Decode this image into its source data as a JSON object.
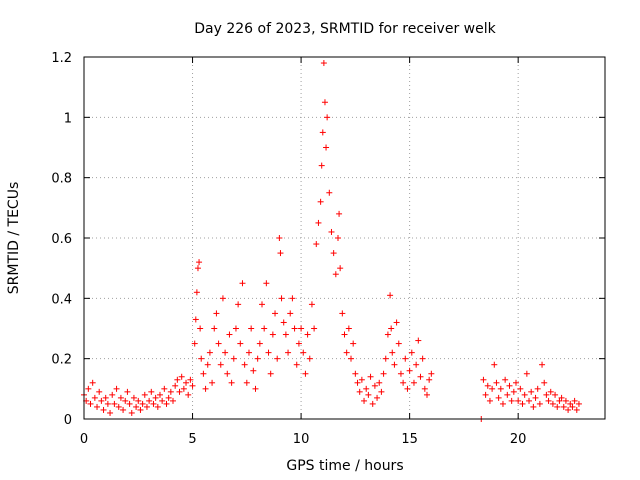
{
  "chart_data": {
    "type": "scatter",
    "title": "Day 226 of 2023, SRMTID for receiver welk",
    "xlabel": "GPS time / hours",
    "ylabel": "SRMTID / TECUs",
    "xlim": [
      0,
      24
    ],
    "ylim": [
      0,
      1.2
    ],
    "grid": true,
    "x_ticks": [
      {
        "value": 0,
        "label": "0"
      },
      {
        "value": 5,
        "label": "5"
      },
      {
        "value": 10,
        "label": "10"
      },
      {
        "value": 15,
        "label": "15"
      },
      {
        "value": 20,
        "label": "20"
      }
    ],
    "y_ticks": [
      {
        "value": 0,
        "label": "0"
      },
      {
        "value": 0.2,
        "label": "0.2"
      },
      {
        "value": 0.4,
        "label": "0.4"
      },
      {
        "value": 0.6,
        "label": "0.6"
      },
      {
        "value": 0.8,
        "label": "0.8"
      },
      {
        "value": 1.0,
        "label": "1"
      },
      {
        "value": 1.2,
        "label": "1.2"
      }
    ],
    "series": [
      {
        "name": "SRMTID",
        "color": "#ff0000",
        "marker": "plus",
        "points": [
          [
            0.0,
            0.08
          ],
          [
            0.1,
            0.06
          ],
          [
            0.2,
            0.1
          ],
          [
            0.3,
            0.05
          ],
          [
            0.4,
            0.12
          ],
          [
            0.5,
            0.07
          ],
          [
            0.6,
            0.04
          ],
          [
            0.7,
            0.09
          ],
          [
            0.8,
            0.06
          ],
          [
            0.9,
            0.03
          ],
          [
            1.0,
            0.07
          ],
          [
            1.1,
            0.05
          ],
          [
            1.2,
            0.02
          ],
          [
            1.3,
            0.08
          ],
          [
            1.4,
            0.05
          ],
          [
            1.5,
            0.1
          ],
          [
            1.6,
            0.04
          ],
          [
            1.7,
            0.07
          ],
          [
            1.8,
            0.03
          ],
          [
            1.9,
            0.06
          ],
          [
            2.0,
            0.09
          ],
          [
            2.1,
            0.05
          ],
          [
            2.2,
            0.02
          ],
          [
            2.3,
            0.07
          ],
          [
            2.4,
            0.04
          ],
          [
            2.5,
            0.06
          ],
          [
            2.6,
            0.03
          ],
          [
            2.7,
            0.05
          ],
          [
            2.8,
            0.08
          ],
          [
            2.9,
            0.04
          ],
          [
            3.0,
            0.06
          ],
          [
            3.1,
            0.09
          ],
          [
            3.2,
            0.05
          ],
          [
            3.3,
            0.07
          ],
          [
            3.4,
            0.04
          ],
          [
            3.5,
            0.08
          ],
          [
            3.6,
            0.06
          ],
          [
            3.7,
            0.1
          ],
          [
            3.8,
            0.05
          ],
          [
            3.9,
            0.07
          ],
          [
            4.0,
            0.09
          ],
          [
            4.1,
            0.06
          ],
          [
            4.2,
            0.11
          ],
          [
            4.3,
            0.13
          ],
          [
            4.4,
            0.09
          ],
          [
            4.5,
            0.14
          ],
          [
            4.6,
            0.1
          ],
          [
            4.7,
            0.12
          ],
          [
            4.8,
            0.08
          ],
          [
            4.9,
            0.13
          ],
          [
            5.0,
            0.11
          ],
          [
            5.1,
            0.25
          ],
          [
            5.15,
            0.33
          ],
          [
            5.2,
            0.42
          ],
          [
            5.25,
            0.5
          ],
          [
            5.3,
            0.52
          ],
          [
            5.35,
            0.3
          ],
          [
            5.4,
            0.2
          ],
          [
            5.5,
            0.15
          ],
          [
            5.6,
            0.1
          ],
          [
            5.7,
            0.18
          ],
          [
            5.8,
            0.22
          ],
          [
            5.9,
            0.12
          ],
          [
            6.0,
            0.3
          ],
          [
            6.1,
            0.35
          ],
          [
            6.2,
            0.25
          ],
          [
            6.3,
            0.18
          ],
          [
            6.4,
            0.4
          ],
          [
            6.5,
            0.22
          ],
          [
            6.6,
            0.15
          ],
          [
            6.7,
            0.28
          ],
          [
            6.8,
            0.12
          ],
          [
            6.9,
            0.2
          ],
          [
            7.0,
            0.3
          ],
          [
            7.1,
            0.38
          ],
          [
            7.2,
            0.25
          ],
          [
            7.3,
            0.45
          ],
          [
            7.4,
            0.18
          ],
          [
            7.5,
            0.12
          ],
          [
            7.6,
            0.22
          ],
          [
            7.7,
            0.3
          ],
          [
            7.8,
            0.16
          ],
          [
            7.9,
            0.1
          ],
          [
            8.0,
            0.2
          ],
          [
            8.1,
            0.25
          ],
          [
            8.2,
            0.38
          ],
          [
            8.3,
            0.3
          ],
          [
            8.4,
            0.45
          ],
          [
            8.5,
            0.22
          ],
          [
            8.6,
            0.15
          ],
          [
            8.7,
            0.28
          ],
          [
            8.8,
            0.35
          ],
          [
            8.9,
            0.2
          ],
          [
            9.0,
            0.6
          ],
          [
            9.05,
            0.55
          ],
          [
            9.1,
            0.4
          ],
          [
            9.2,
            0.32
          ],
          [
            9.3,
            0.28
          ],
          [
            9.4,
            0.22
          ],
          [
            9.5,
            0.35
          ],
          [
            9.6,
            0.4
          ],
          [
            9.7,
            0.3
          ],
          [
            9.8,
            0.18
          ],
          [
            9.9,
            0.25
          ],
          [
            10.0,
            0.3
          ],
          [
            10.1,
            0.22
          ],
          [
            10.2,
            0.15
          ],
          [
            10.3,
            0.28
          ],
          [
            10.4,
            0.2
          ],
          [
            10.5,
            0.38
          ],
          [
            10.6,
            0.3
          ],
          [
            10.7,
            0.58
          ],
          [
            10.8,
            0.65
          ],
          [
            10.9,
            0.72
          ],
          [
            10.95,
            0.84
          ],
          [
            11.0,
            0.95
          ],
          [
            11.05,
            1.18
          ],
          [
            11.1,
            1.05
          ],
          [
            11.15,
            0.9
          ],
          [
            11.2,
            1.0
          ],
          [
            11.3,
            0.75
          ],
          [
            11.4,
            0.62
          ],
          [
            11.5,
            0.55
          ],
          [
            11.6,
            0.48
          ],
          [
            11.7,
            0.6
          ],
          [
            11.75,
            0.68
          ],
          [
            11.8,
            0.5
          ],
          [
            11.9,
            0.35
          ],
          [
            12.0,
            0.28
          ],
          [
            12.1,
            0.22
          ],
          [
            12.2,
            0.3
          ],
          [
            12.3,
            0.2
          ],
          [
            12.4,
            0.25
          ],
          [
            12.5,
            0.15
          ],
          [
            12.6,
            0.12
          ],
          [
            12.7,
            0.09
          ],
          [
            12.8,
            0.13
          ],
          [
            12.9,
            0.06
          ],
          [
            13.0,
            0.1
          ],
          [
            13.1,
            0.08
          ],
          [
            13.2,
            0.14
          ],
          [
            13.3,
            0.05
          ],
          [
            13.4,
            0.11
          ],
          [
            13.5,
            0.07
          ],
          [
            13.6,
            0.12
          ],
          [
            13.7,
            0.09
          ],
          [
            13.8,
            0.15
          ],
          [
            13.9,
            0.2
          ],
          [
            14.0,
            0.28
          ],
          [
            14.1,
            0.41
          ],
          [
            14.15,
            0.3
          ],
          [
            14.2,
            0.22
          ],
          [
            14.3,
            0.18
          ],
          [
            14.4,
            0.32
          ],
          [
            14.5,
            0.25
          ],
          [
            14.6,
            0.15
          ],
          [
            14.7,
            0.12
          ],
          [
            14.8,
            0.2
          ],
          [
            14.9,
            0.1
          ],
          [
            15.0,
            0.16
          ],
          [
            15.1,
            0.22
          ],
          [
            15.2,
            0.12
          ],
          [
            15.3,
            0.18
          ],
          [
            15.4,
            0.26
          ],
          [
            15.5,
            0.14
          ],
          [
            15.6,
            0.2
          ],
          [
            15.7,
            0.1
          ],
          [
            15.8,
            0.08
          ],
          [
            15.9,
            0.13
          ],
          [
            16.0,
            0.15
          ],
          [
            18.3,
            0.0
          ],
          [
            18.4,
            0.13
          ],
          [
            18.5,
            0.08
          ],
          [
            18.6,
            0.11
          ],
          [
            18.7,
            0.06
          ],
          [
            18.8,
            0.1
          ],
          [
            18.9,
            0.18
          ],
          [
            19.0,
            0.12
          ],
          [
            19.1,
            0.07
          ],
          [
            19.2,
            0.1
          ],
          [
            19.3,
            0.05
          ],
          [
            19.4,
            0.13
          ],
          [
            19.5,
            0.08
          ],
          [
            19.6,
            0.11
          ],
          [
            19.7,
            0.06
          ],
          [
            19.8,
            0.09
          ],
          [
            19.9,
            0.12
          ],
          [
            20.0,
            0.06
          ],
          [
            20.1,
            0.1
          ],
          [
            20.2,
            0.05
          ],
          [
            20.3,
            0.08
          ],
          [
            20.4,
            0.15
          ],
          [
            20.5,
            0.06
          ],
          [
            20.6,
            0.09
          ],
          [
            20.7,
            0.04
          ],
          [
            20.8,
            0.07
          ],
          [
            20.9,
            0.1
          ],
          [
            21.0,
            0.05
          ],
          [
            21.1,
            0.18
          ],
          [
            21.2,
            0.12
          ],
          [
            21.3,
            0.08
          ],
          [
            21.4,
            0.06
          ],
          [
            21.5,
            0.09
          ],
          [
            21.6,
            0.05
          ],
          [
            21.7,
            0.08
          ],
          [
            21.8,
            0.04
          ],
          [
            21.9,
            0.06
          ],
          [
            22.0,
            0.07
          ],
          [
            22.1,
            0.04
          ],
          [
            22.2,
            0.06
          ],
          [
            22.3,
            0.03
          ],
          [
            22.4,
            0.05
          ],
          [
            22.5,
            0.04
          ],
          [
            22.6,
            0.06
          ],
          [
            22.7,
            0.03
          ],
          [
            22.8,
            0.05
          ]
        ]
      }
    ]
  }
}
